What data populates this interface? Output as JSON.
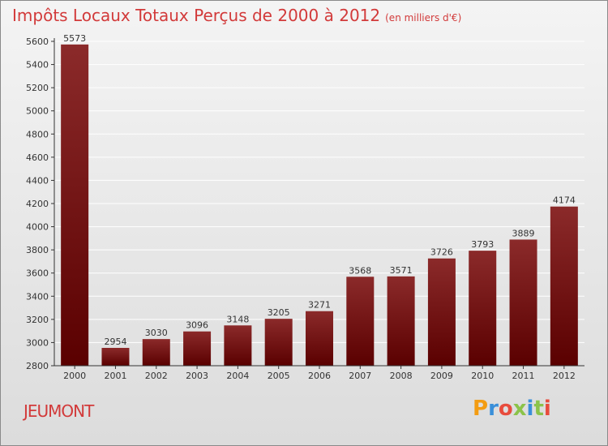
{
  "header": {
    "title": "Impôts Locaux Totaux Perçus de 2000 à 2012",
    "unit": "(en milliers d'€)"
  },
  "footer": {
    "place": "JEUMONT",
    "logo": "Proxiti"
  },
  "colors": {
    "title": "#d23a3a",
    "bar_top": "#8b2a2a",
    "bar_bottom": "#5a0000"
  },
  "chart_data": {
    "type": "bar",
    "title": "Impôts Locaux Totaux Perçus de 2000 à 2012",
    "subtitle": "(en milliers d'€)",
    "categories": [
      "2000",
      "2001",
      "2002",
      "2003",
      "2004",
      "2005",
      "2006",
      "2007",
      "2008",
      "2009",
      "2010",
      "2011",
      "2012"
    ],
    "values": [
      5573,
      2954,
      3030,
      3096,
      3148,
      3205,
      3271,
      3568,
      3571,
      3726,
      3793,
      3889,
      4174
    ],
    "ylim": [
      2800,
      5600
    ],
    "yticks": [
      2800,
      3000,
      3200,
      3400,
      3600,
      3800,
      4000,
      4200,
      4400,
      4600,
      4800,
      5000,
      5200,
      5400,
      5600
    ],
    "grid": true,
    "xlabel": "",
    "ylabel": ""
  }
}
